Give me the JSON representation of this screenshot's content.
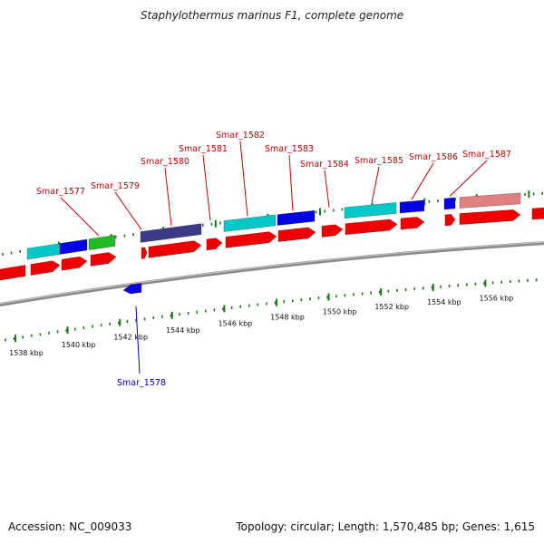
{
  "title": "Staphylothermus marinus F1, complete genome",
  "footer": {
    "accession": "Accession: NC_009033",
    "stats": "Topology: circular; Length: 1,570,485 bp; Genes: 1,615"
  },
  "colors": {
    "backbone": "#8a8a8a",
    "tick": "#1a7a1a",
    "cds": "#ee0000",
    "cyan": "#00c8c8",
    "blue": "#0000e6",
    "green": "#22bb22",
    "navy": "#3c3a86",
    "pink": "#e08080",
    "label_top": "#cc0000",
    "label_bottom": "#0000cc"
  },
  "ticks": [
    "1538 kbp",
    "1540 kbp",
    "1542 kbp",
    "1544 kbp",
    "1546 kbp",
    "1548 kbp",
    "1550 kbp",
    "1552 kbp",
    "1554 kbp",
    "1556 kbp"
  ],
  "gene_labels_top": [
    "Smar_1577",
    "Smar_1579",
    "Smar_1580",
    "Smar_1581",
    "Smar_1582",
    "Smar_1583",
    "Smar_1584",
    "Smar_1585",
    "Smar_1586",
    "Smar_1587"
  ],
  "gene_labels_bottom": [
    "Smar_1578"
  ],
  "feature_tracks": [
    "cyan",
    "blue",
    "green",
    "navy",
    "cyan",
    "blue",
    "cyan",
    "blue",
    "blue",
    "pink"
  ]
}
